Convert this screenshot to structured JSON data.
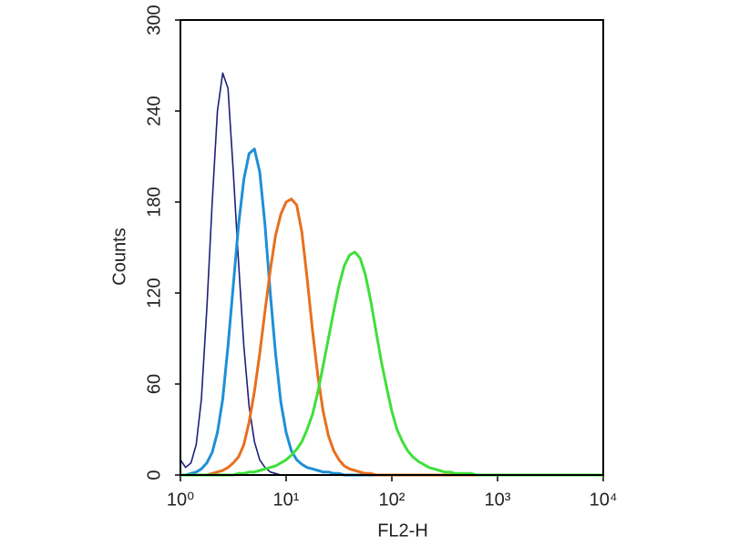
{
  "chart_data": {
    "type": "line",
    "xlabel": "FL2-H",
    "ylabel": "Counts",
    "xscale": "log",
    "xlim": [
      1,
      10000
    ],
    "xticks": [
      {
        "value": 1,
        "label": "10⁰"
      },
      {
        "value": 10,
        "label": "10¹"
      },
      {
        "value": 100,
        "label": "10²"
      },
      {
        "value": 1000,
        "label": "10³"
      },
      {
        "value": 10000,
        "label": "10⁴"
      }
    ],
    "ylim": [
      0,
      300
    ],
    "yticks": [
      0,
      60,
      120,
      180,
      240,
      300
    ],
    "x": [
      1,
      1.12,
      1.26,
      1.41,
      1.58,
      1.78,
      2,
      2.24,
      2.51,
      2.82,
      3.16,
      3.55,
      3.98,
      4.47,
      5.01,
      5.62,
      6.31,
      7.08,
      7.94,
      8.91,
      10,
      11.2,
      12.6,
      14.1,
      15.8,
      17.8,
      20,
      22.4,
      25.1,
      28.2,
      31.6,
      35.5,
      39.8,
      44.7,
      50.1,
      56.2,
      63.1,
      70.8,
      79.4,
      89.1,
      100,
      112,
      126,
      141,
      158,
      178,
      200,
      224,
      251,
      282,
      316,
      355,
      398,
      447,
      501,
      562,
      631,
      708,
      794,
      891,
      1000,
      10000
    ],
    "series": [
      {
        "color": "#1c1f7a",
        "values": [
          10,
          5,
          8,
          20,
          50,
          110,
          180,
          240,
          265,
          255,
          200,
          140,
          85,
          45,
          22,
          10,
          5,
          2,
          1,
          0,
          0,
          0,
          0,
          0,
          0,
          0,
          0,
          0,
          0,
          0,
          0,
          0,
          0,
          0,
          0,
          0,
          0,
          0,
          0,
          0,
          0,
          0,
          0,
          0,
          0,
          0,
          0,
          0,
          0,
          0,
          0,
          0,
          0,
          0,
          0,
          0,
          0,
          0,
          0,
          0,
          0,
          0
        ]
      },
      {
        "color": "#1f8fd6",
        "values": [
          0,
          0,
          1,
          2,
          4,
          8,
          15,
          28,
          50,
          85,
          125,
          165,
          195,
          212,
          215,
          200,
          165,
          120,
          80,
          48,
          28,
          16,
          10,
          7,
          5,
          4,
          3,
          2,
          2,
          1,
          1,
          0,
          0,
          0,
          0,
          0,
          0,
          0,
          0,
          0,
          0,
          0,
          0,
          0,
          0,
          0,
          0,
          0,
          0,
          0,
          0,
          0,
          0,
          0,
          0,
          0,
          0,
          0,
          0,
          0,
          0,
          0
        ]
      },
      {
        "color": "#e8701f",
        "values": [
          0,
          0,
          0,
          0,
          0,
          0,
          1,
          2,
          3,
          5,
          8,
          12,
          20,
          35,
          55,
          80,
          108,
          135,
          158,
          172,
          180,
          182,
          178,
          160,
          130,
          95,
          65,
          42,
          26,
          16,
          10,
          6,
          4,
          3,
          2,
          1,
          1,
          0,
          0,
          0,
          0,
          0,
          0,
          0,
          0,
          0,
          0,
          0,
          0,
          0,
          0,
          0,
          0,
          0,
          0,
          0,
          0,
          0,
          0,
          0,
          0,
          0
        ]
      },
      {
        "color": "#3ee03a",
        "values": [
          0,
          0,
          0,
          0,
          0,
          0,
          0,
          0,
          0,
          0,
          0,
          1,
          1,
          2,
          2,
          3,
          4,
          5,
          6,
          8,
          10,
          13,
          17,
          22,
          30,
          40,
          55,
          72,
          90,
          108,
          125,
          138,
          145,
          147,
          143,
          132,
          115,
          95,
          75,
          58,
          42,
          30,
          22,
          16,
          12,
          9,
          7,
          5,
          4,
          3,
          2,
          2,
          1,
          1,
          1,
          1,
          0,
          0,
          0,
          0,
          0,
          0
        ]
      }
    ]
  }
}
